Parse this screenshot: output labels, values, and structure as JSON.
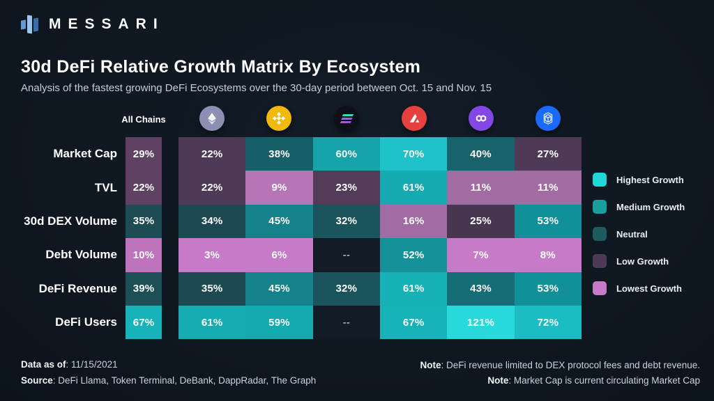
{
  "brand": {
    "name": "MESSARI"
  },
  "header": {
    "title": "30d DeFi Relative Growth Matrix By Ecosystem",
    "subtitle": "Analysis of the fastest growing DeFi Ecosystems over the 30-day period between Oct. 15 and Nov. 15"
  },
  "columns": [
    {
      "id": "all-chains",
      "label": "All Chains"
    },
    {
      "id": "ethereum",
      "icon": "ethereum-icon",
      "color": "#8b90b3"
    },
    {
      "id": "bnb-chain",
      "icon": "bnb-icon",
      "color": "#f1b90c"
    },
    {
      "id": "solana",
      "icon": "solana-icon",
      "color": "#0d1117"
    },
    {
      "id": "avalanche",
      "icon": "avalanche-icon",
      "color": "#e5413e"
    },
    {
      "id": "polygon",
      "icon": "polygon-icon",
      "color": "#8247e5"
    },
    {
      "id": "fantom",
      "icon": "fantom-icon",
      "color": "#1a6aff"
    }
  ],
  "matrix": {
    "column_ids": [
      "all-chains",
      "ethereum",
      "bnb-chain",
      "solana",
      "avalanche",
      "polygon",
      "fantom"
    ],
    "rows": [
      {
        "id": "market-cap",
        "label": "Market Cap",
        "cells": [
          {
            "value": "29%",
            "color": "#5e4163"
          },
          {
            "value": "22%",
            "color": "#4e3a56"
          },
          {
            "value": "38%",
            "color": "#175f66"
          },
          {
            "value": "60%",
            "color": "#14a4aa"
          },
          {
            "value": "70%",
            "color": "#1dc3c9"
          },
          {
            "value": "40%",
            "color": "#18626b"
          },
          {
            "value": "27%",
            "color": "#4e3a56"
          }
        ]
      },
      {
        "id": "tvl",
        "label": "TVL",
        "cells": [
          {
            "value": "22%",
            "color": "#5e4163"
          },
          {
            "value": "22%",
            "color": "#4e3a56"
          },
          {
            "value": "9%",
            "color": "#b774b7"
          },
          {
            "value": "23%",
            "color": "#523c5a"
          },
          {
            "value": "61%",
            "color": "#15abb1"
          },
          {
            "value": "11%",
            "color": "#a06ca1"
          },
          {
            "value": "11%",
            "color": "#a06ca1"
          }
        ]
      },
      {
        "id": "dex-volume-30d",
        "label": "30d DEX Volume",
        "cells": [
          {
            "value": "35%",
            "color": "#1d4c55"
          },
          {
            "value": "34%",
            "color": "#1d4a52"
          },
          {
            "value": "45%",
            "color": "#15828b"
          },
          {
            "value": "32%",
            "color": "#1b545d"
          },
          {
            "value": "16%",
            "color": "#a26ba4"
          },
          {
            "value": "25%",
            "color": "#483650"
          },
          {
            "value": "53%",
            "color": "#12909a"
          }
        ]
      },
      {
        "id": "debt-volume",
        "label": "Debt Volume",
        "cells": [
          {
            "value": "10%",
            "color": "#bd74bd"
          },
          {
            "value": "3%",
            "color": "#c77ac7"
          },
          {
            "value": "6%",
            "color": "#c77ac7"
          },
          {
            "value": "--",
            "color": ""
          },
          {
            "value": "52%",
            "color": "#149199"
          },
          {
            "value": "7%",
            "color": "#c77ac7"
          },
          {
            "value": "8%",
            "color": "#c77ac7"
          }
        ]
      },
      {
        "id": "defi-revenue",
        "label": "DeFi Revenue",
        "cells": [
          {
            "value": "39%",
            "color": "#1c4f58"
          },
          {
            "value": "35%",
            "color": "#1d4a52"
          },
          {
            "value": "45%",
            "color": "#15828b"
          },
          {
            "value": "32%",
            "color": "#1b545d"
          },
          {
            "value": "61%",
            "color": "#17b2b6"
          },
          {
            "value": "43%",
            "color": "#176d76"
          },
          {
            "value": "53%",
            "color": "#12909a"
          }
        ]
      },
      {
        "id": "defi-users",
        "label": "DeFi Users",
        "cells": [
          {
            "value": "67%",
            "color": "#16b4b8"
          },
          {
            "value": "61%",
            "color": "#15adb2"
          },
          {
            "value": "59%",
            "color": "#14a9ae"
          },
          {
            "value": "--",
            "color": ""
          },
          {
            "value": "67%",
            "color": "#16b4b8"
          },
          {
            "value": "121%",
            "color": "#27d9da"
          },
          {
            "value": "72%",
            "color": "#1abdc1"
          }
        ]
      }
    ]
  },
  "legend": [
    {
      "label": "Highest Growth",
      "color": "#21d6d6"
    },
    {
      "label": "Medium Growth",
      "color": "#1a9fa1"
    },
    {
      "label": "Neutral",
      "color": "#1d5a61"
    },
    {
      "label": "Low Growth",
      "color": "#4e3a56"
    },
    {
      "label": "Lowest Growth",
      "color": "#c77ac7"
    }
  ],
  "footer": {
    "left": [
      {
        "bold": "Data as of",
        "rest": ": 11/15/2021"
      },
      {
        "bold": "Source",
        "rest": ": DeFi Llama, Token Terminal, DeBank, DappRadar, The Graph"
      }
    ],
    "right": [
      {
        "bold": "Note",
        "rest": ": DeFi revenue limited to DEX protocol fees and debt revenue."
      },
      {
        "bold": "Note",
        "rest": ": Market Cap is current circulating Market Cap"
      }
    ]
  },
  "colors": {
    "background": "#101821",
    "no_data": "#131c26",
    "subtitle_text": "#c4cedb"
  },
  "chart_data": {
    "type": "heatmap",
    "title": "30d DeFi Relative Growth Matrix By Ecosystem",
    "subtitle": "Analysis of the fastest growing DeFi Ecosystems over the 30-day period between Oct. 15 and Nov. 15",
    "unit": "%",
    "columns": [
      "All Chains",
      "Ethereum",
      "BNB Chain",
      "Solana",
      "Avalanche",
      "Polygon",
      "Fantom"
    ],
    "rows": [
      "Market Cap",
      "TVL",
      "30d DEX Volume",
      "Debt Volume",
      "DeFi Revenue",
      "DeFi Users"
    ],
    "values": [
      [
        29,
        22,
        38,
        60,
        70,
        40,
        27
      ],
      [
        22,
        22,
        9,
        23,
        61,
        11,
        11
      ],
      [
        35,
        34,
        45,
        32,
        16,
        25,
        53
      ],
      [
        10,
        3,
        6,
        null,
        52,
        7,
        8
      ],
      [
        39,
        35,
        45,
        32,
        61,
        43,
        53
      ],
      [
        67,
        61,
        59,
        null,
        67,
        121,
        72
      ]
    ],
    "legend_position": "right",
    "legend": [
      "Highest Growth",
      "Medium Growth",
      "Neutral",
      "Low Growth",
      "Lowest Growth"
    ],
    "data_as_of": "11/15/2021",
    "source": "DeFi Llama, Token Terminal, DeBank, DappRadar, The Graph"
  }
}
